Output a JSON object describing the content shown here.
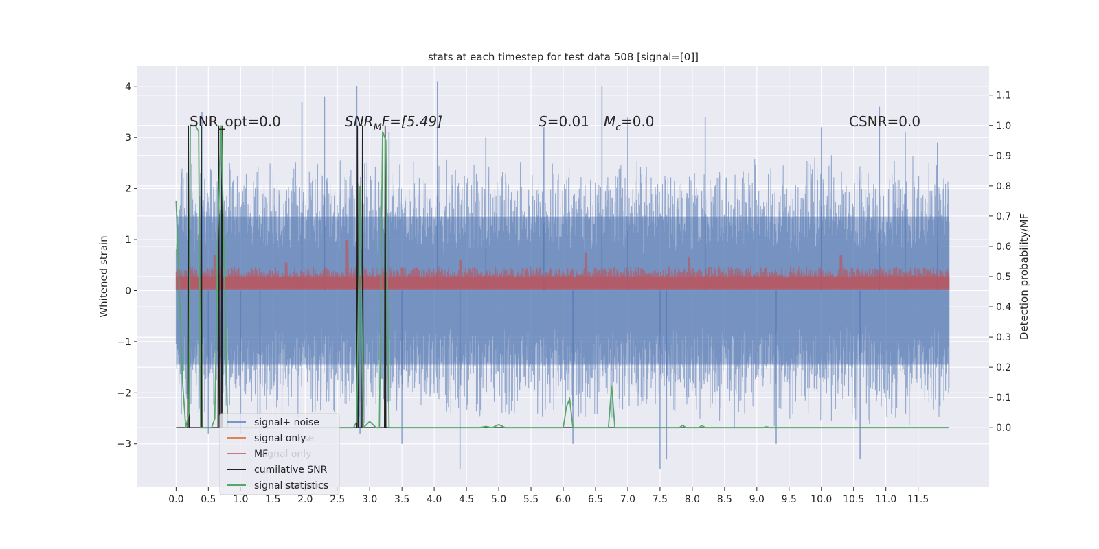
{
  "chart_data": {
    "type": "line",
    "title": "stats at each timestep for test data 508 [signal=[0]]",
    "xlabel": "",
    "ylabel": "Whitened strain",
    "y2label": "Detection probability/MF",
    "xlim": [
      -0.6,
      12.6
    ],
    "ylim": [
      -3.85,
      4.4
    ],
    "y2lim": [
      -0.197,
      1.197
    ],
    "x_ticks": [
      "0.0",
      "0.5",
      "1.0",
      "1.5",
      "2.0",
      "2.5",
      "3.0",
      "3.5",
      "4.0",
      "4.5",
      "5.0",
      "5.5",
      "6.0",
      "6.5",
      "7.0",
      "7.5",
      "8.0",
      "8.5",
      "9.0",
      "9.5",
      "10.0",
      "10.5",
      "11.0",
      "11.5"
    ],
    "y_ticks": [
      "4",
      "3",
      "2",
      "1",
      "0",
      "−1",
      "−2",
      "−3"
    ],
    "y2_ticks": [
      "1.1",
      "1.0",
      "0.9",
      "0.8",
      "0.7",
      "0.6",
      "0.5",
      "0.4",
      "0.3",
      "0.2",
      "0.1",
      "0.0"
    ],
    "grid": true,
    "legend_position": "lower-left",
    "annotations": {
      "snr_opt": "SNR_opt=0.0",
      "snr_mf_base": "SNR",
      "snr_mf_sub": "M",
      "snr_mf_rest": "F=[5.49]",
      "s_label": "S",
      "s_value": "=0.01",
      "mc_label": "M",
      "mc_sub": "c",
      "mc_value": "=0.0",
      "csnr": "CSNR=0.0"
    },
    "legend_ghost": {
      "noise": "noise",
      "signal_only": "signal only",
      "statistics": "statistics"
    },
    "series": [
      {
        "name": "signal+ noise",
        "color": "#4c72b0",
        "axis": "left",
        "style": "noise-band",
        "t_range": [
          0.0,
          11.98
        ],
        "core_amplitude": 1.5,
        "spikes": [
          [
            0.4,
            3.5
          ],
          [
            0.5,
            -2.8
          ],
          [
            0.7,
            2.9
          ],
          [
            1.0,
            -2.8
          ],
          [
            1.3,
            -3.2
          ],
          [
            1.95,
            3.7
          ],
          [
            2.3,
            3.8
          ],
          [
            2.8,
            4.0
          ],
          [
            2.85,
            -2.8
          ],
          [
            3.3,
            3.1
          ],
          [
            3.5,
            -3.0
          ],
          [
            4.05,
            4.1
          ],
          [
            4.4,
            -3.5
          ],
          [
            4.8,
            3.0
          ],
          [
            5.7,
            3.2
          ],
          [
            6.15,
            -3.0
          ],
          [
            6.6,
            4.0
          ],
          [
            7.0,
            3.4
          ],
          [
            7.5,
            -3.5
          ],
          [
            7.6,
            -3.3
          ],
          [
            8.2,
            3.4
          ],
          [
            9.3,
            -3.0
          ],
          [
            10.0,
            3.2
          ],
          [
            10.6,
            -3.3
          ],
          [
            10.9,
            3.6
          ],
          [
            11.3,
            3.1
          ],
          [
            11.8,
            2.9
          ]
        ]
      },
      {
        "name": "signal only",
        "color": "#dd8452",
        "axis": "left",
        "style": "hidden",
        "t_range": [
          0.0,
          11.98
        ]
      },
      {
        "name": "MF",
        "color": "#c44e52",
        "axis": "left",
        "style": "mf-band",
        "t_range": [
          0.0,
          11.98
        ],
        "base": 0.02,
        "top": 0.3,
        "peaks": [
          [
            0.6,
            0.7
          ],
          [
            2.65,
            1.0
          ],
          [
            6.35,
            0.75
          ],
          [
            7.95,
            0.65
          ],
          [
            10.3,
            0.7
          ],
          [
            1.7,
            0.55
          ],
          [
            4.4,
            0.6
          ]
        ]
      },
      {
        "name": "cumilative SNR",
        "color": "#222222",
        "axis": "right",
        "style": "pulses",
        "x": [
          0.0,
          0.18,
          0.19,
          0.2,
          0.38,
          0.39,
          0.4,
          0.65,
          0.66,
          0.67,
          0.7,
          0.71,
          0.72,
          2.8,
          2.81,
          2.82,
          2.88,
          2.89,
          2.9,
          3.23,
          3.24,
          3.25,
          11.98
        ],
        "y": [
          0.0,
          0.0,
          1.0,
          0.0,
          0.0,
          1.0,
          0.0,
          0.0,
          1.0,
          0.0,
          0.0,
          1.0,
          0.0,
          0.0,
          1.0,
          0.0,
          0.0,
          1.0,
          0.0,
          0.0,
          1.0,
          0.0,
          0.0
        ]
      },
      {
        "name": "signal statistics",
        "color": "#55a868",
        "axis": "right",
        "style": "line",
        "x": [
          0.0,
          0.1,
          0.15,
          0.2,
          0.22,
          0.25,
          0.3,
          0.35,
          0.38,
          0.4,
          0.45,
          0.55,
          0.6,
          0.65,
          0.7,
          0.75,
          0.8,
          2.7,
          2.75,
          2.8,
          2.85,
          2.9,
          3.0,
          3.1,
          3.15,
          3.2,
          3.25,
          3.3,
          3.35,
          4.7,
          4.8,
          4.9,
          5.0,
          5.1,
          6.0,
          6.05,
          6.1,
          6.15,
          6.2,
          6.7,
          6.75,
          6.8,
          6.85,
          7.8,
          7.85,
          7.9,
          8.0,
          8.1,
          8.15,
          8.2,
          9.1,
          9.15,
          9.2,
          10.0,
          11.0,
          11.9,
          11.98
        ],
        "y": [
          0.75,
          0.15,
          0.0,
          0.05,
          1.0,
          1.0,
          1.0,
          0.98,
          0.0,
          0.0,
          0.0,
          0.0,
          0.03,
          0.65,
          1.0,
          0.5,
          0.0,
          0.0,
          0.0,
          0.02,
          0.8,
          0.0,
          0.02,
          0.0,
          0.0,
          0.98,
          0.95,
          0.0,
          0.0,
          0.0,
          0.004,
          0.0,
          0.01,
          0.0,
          0.0,
          0.07,
          0.095,
          0.0,
          0.0,
          0.0,
          0.14,
          0.0,
          0.0,
          0.0,
          0.008,
          0.0,
          0.0,
          0.0,
          0.007,
          0.0,
          0.0,
          0.003,
          0.0,
          0.0,
          0.0,
          0.0,
          0.0
        ]
      }
    ]
  }
}
